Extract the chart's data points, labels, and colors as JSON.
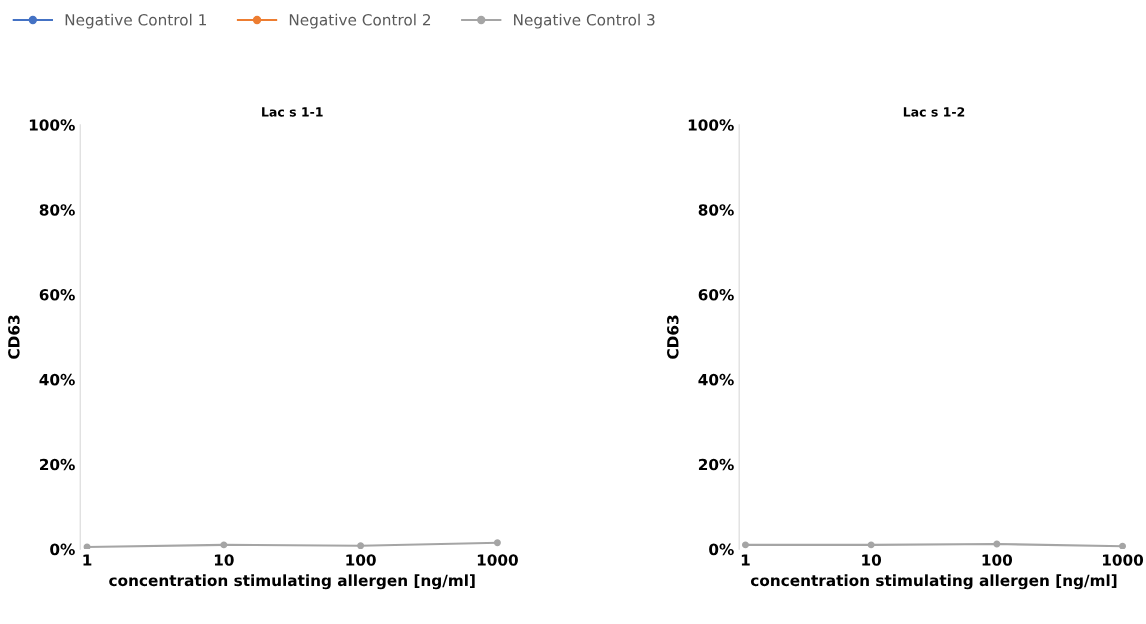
{
  "chart_data": [
    {
      "type": "line",
      "title": "Lac s 1-1",
      "xlabel": "concentration stimulating allergen [ng/ml]",
      "ylabel": "CD63",
      "categories": [
        "1",
        "10",
        "100",
        "1000"
      ],
      "ylim": [
        0,
        100
      ],
      "yticks": [
        {
          "value": 0,
          "label": "0%"
        },
        {
          "value": 20,
          "label": "20%"
        },
        {
          "value": 40,
          "label": "40%"
        },
        {
          "value": 60,
          "label": "60%"
        },
        {
          "value": 80,
          "label": "80%"
        },
        {
          "value": 100,
          "label": "100%"
        }
      ],
      "marker": "circle",
      "grid": false,
      "legend": "top",
      "series": [
        {
          "name": "Negative Control 1",
          "color": "#4472c4",
          "values": [
            null,
            null,
            null,
            null
          ]
        },
        {
          "name": "Negative Control 2",
          "color": "#ed7d31",
          "values": [
            null,
            null,
            null,
            null
          ]
        },
        {
          "name": "Negative Control 3",
          "color": "#a5a5a5",
          "values": [
            0.5,
            1,
            0.8,
            1.5
          ]
        }
      ]
    },
    {
      "type": "line",
      "title": "Lac s 1-2",
      "xlabel": "concentration stimulating allergen [ng/ml]",
      "ylabel": "CD63",
      "categories": [
        "1",
        "10",
        "100",
        "1000"
      ],
      "ylim": [
        0,
        100
      ],
      "yticks": [
        {
          "value": 0,
          "label": "0%"
        },
        {
          "value": 20,
          "label": "20%"
        },
        {
          "value": 40,
          "label": "40%"
        },
        {
          "value": 60,
          "label": "60%"
        },
        {
          "value": 80,
          "label": "80%"
        },
        {
          "value": 100,
          "label": "100%"
        }
      ],
      "marker": "circle",
      "grid": false,
      "series": [
        {
          "color": "#4472c4",
          "values": [
            null,
            null,
            null,
            null
          ]
        },
        {
          "color": "#ed7d31",
          "values": [
            null,
            null,
            null,
            null
          ]
        },
        {
          "color": "#a5a5a5",
          "values": [
            1,
            1,
            1.2,
            0.7
          ]
        }
      ]
    }
  ]
}
